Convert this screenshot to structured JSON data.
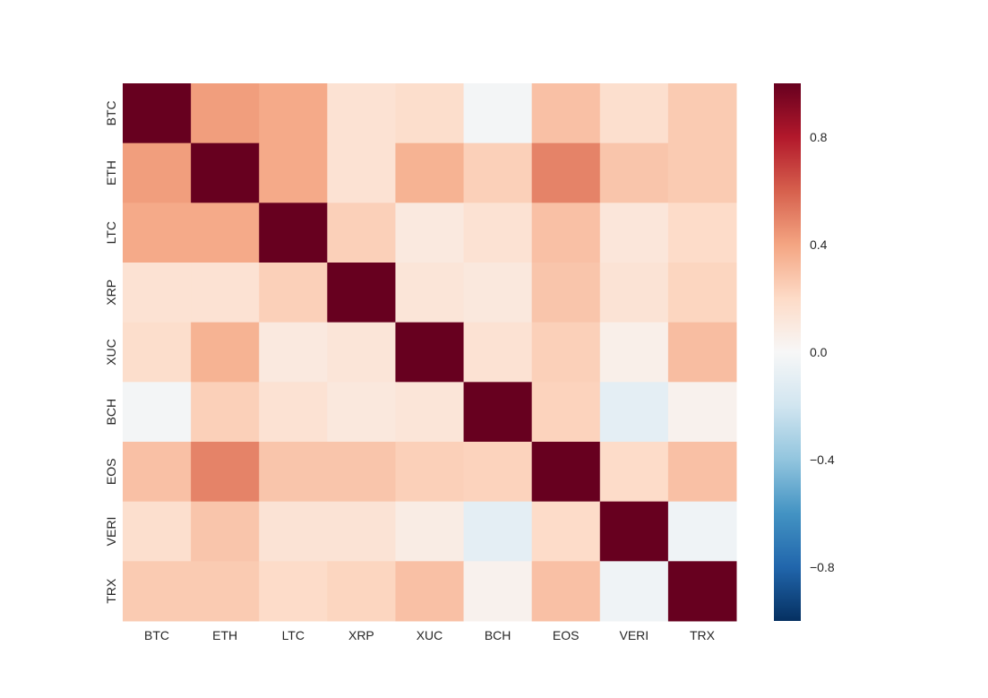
{
  "chart_data": {
    "type": "heatmap",
    "title": "",
    "xlabel": "",
    "ylabel": "",
    "x_categories": [
      "BTC",
      "ETH",
      "LTC",
      "XRP",
      "XUC",
      "BCH",
      "EOS",
      "VERI",
      "TRX"
    ],
    "y_categories": [
      "BTC",
      "ETH",
      "LTC",
      "XRP",
      "XUC",
      "BCH",
      "EOS",
      "VERI",
      "TRX"
    ],
    "values": [
      [
        1.0,
        0.42,
        0.38,
        0.15,
        0.18,
        -0.02,
        0.3,
        0.17,
        0.26
      ],
      [
        0.42,
        1.0,
        0.38,
        0.15,
        0.35,
        0.24,
        0.5,
        0.28,
        0.26
      ],
      [
        0.38,
        0.38,
        1.0,
        0.24,
        0.1,
        0.15,
        0.3,
        0.12,
        0.19
      ],
      [
        0.15,
        0.15,
        0.24,
        1.0,
        0.13,
        0.11,
        0.28,
        0.14,
        0.22
      ],
      [
        0.18,
        0.35,
        0.1,
        0.13,
        1.0,
        0.15,
        0.24,
        0.06,
        0.31
      ],
      [
        -0.02,
        0.24,
        0.15,
        0.11,
        0.13,
        1.0,
        0.23,
        -0.1,
        0.04
      ],
      [
        0.3,
        0.5,
        0.28,
        0.28,
        0.24,
        0.23,
        1.0,
        0.19,
        0.3
      ],
      [
        0.17,
        0.28,
        0.14,
        0.14,
        0.08,
        -0.1,
        0.19,
        1.0,
        -0.04
      ],
      [
        0.26,
        0.26,
        0.19,
        0.22,
        0.3,
        0.04,
        0.3,
        -0.04,
        1.0
      ]
    ],
    "vmin": -1.0,
    "vmax": 1.0,
    "colormap": "RdBu_r",
    "colorbar_ticks": [
      "0.8",
      "0.4",
      "0.0",
      "−0.4",
      "−0.8"
    ],
    "colorbar_tick_values": [
      0.8,
      0.4,
      0.0,
      -0.4,
      -0.8
    ],
    "grid": false,
    "legend": "right"
  },
  "colors": {
    "colormap_stops": [
      "#053061",
      "#2166ac",
      "#4393c3",
      "#92c5de",
      "#d1e5f0",
      "#f7f7f7",
      "#fddbc7",
      "#f4a582",
      "#d6604d",
      "#b2182b",
      "#67001f"
    ],
    "text": "#262626"
  }
}
